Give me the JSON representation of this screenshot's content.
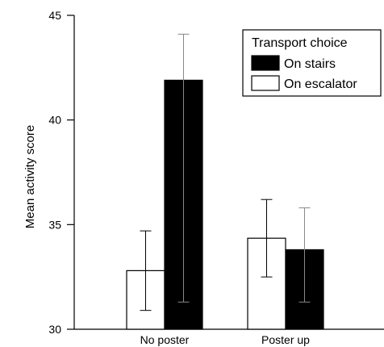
{
  "chart_data": {
    "type": "bar",
    "categories": [
      "No poster",
      "Poster up"
    ],
    "series": [
      {
        "name": "On escalator",
        "color": "#ffffff",
        "values": [
          32.8,
          34.35
        ],
        "error_low": [
          30.9,
          32.5
        ],
        "error_high": [
          34.7,
          36.2
        ]
      },
      {
        "name": "On stairs",
        "color": "#000000",
        "values": [
          41.9,
          33.8
        ],
        "error_low": [
          31.3,
          31.3
        ],
        "error_high": [
          44.1,
          35.8
        ]
      }
    ],
    "ylabel": "Mean activity score",
    "ylim": [
      30,
      45
    ],
    "yticks": [
      30,
      35,
      40,
      45
    ],
    "legend": {
      "title": "Transport choice",
      "placement": "top-right",
      "order": [
        "On stairs",
        "On escalator"
      ]
    },
    "grid": false
  }
}
